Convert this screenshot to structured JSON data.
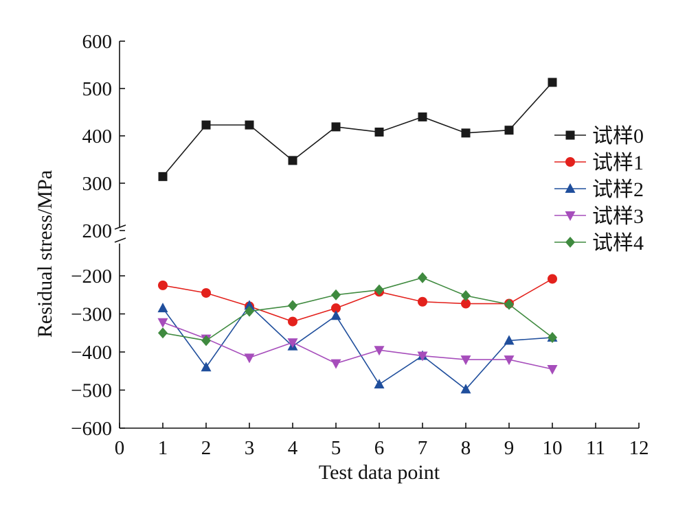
{
  "chart_data": {
    "type": "line",
    "xlabel": "Test data point",
    "ylabel": "Residual stress/MPa",
    "x": [
      1,
      2,
      3,
      4,
      5,
      6,
      7,
      8,
      9,
      10
    ],
    "xlim": [
      0,
      12
    ],
    "x_ticks": [
      "0",
      "1",
      "2",
      "3",
      "4",
      "5",
      "6",
      "7",
      "8",
      "9",
      "10",
      "11",
      "12"
    ],
    "y_axis_break": true,
    "y_upper_segment": {
      "range": [
        200,
        600
      ],
      "ticks": [
        "200",
        "300",
        "400",
        "500",
        "600"
      ]
    },
    "y_lower_segment": {
      "range": [
        -600,
        -150
      ],
      "ticks": [
        "−200",
        "−300",
        "−400",
        "−500",
        "−600"
      ]
    },
    "legend_position": "right",
    "grid": false,
    "series": [
      {
        "name": "试样0",
        "color": "#1a1a1a",
        "marker": "square",
        "values": [
          314,
          423,
          423,
          348,
          419,
          408,
          440,
          406,
          412,
          513
        ]
      },
      {
        "name": "试样1",
        "color": "#e3211c",
        "marker": "circle",
        "values": [
          -225,
          -245,
          -280,
          -320,
          -285,
          -242,
          -268,
          -273,
          -273,
          -208
        ]
      },
      {
        "name": "试样2",
        "color": "#1f4e9c",
        "marker": "triangle-up",
        "values": [
          -285,
          -440,
          -278,
          -385,
          -305,
          -485,
          -410,
          -498,
          -370,
          -362
        ]
      },
      {
        "name": "试样3",
        "color": "#a64dbb",
        "marker": "triangle-down",
        "values": [
          -322,
          -365,
          -415,
          -375,
          -430,
          -395,
          -410,
          -420,
          -420,
          -445
        ]
      },
      {
        "name": "试样4",
        "color": "#3f8a3f",
        "marker": "diamond",
        "values": [
          -350,
          -370,
          -293,
          -278,
          -250,
          -237,
          -205,
          -252,
          -275,
          -362
        ]
      }
    ]
  }
}
